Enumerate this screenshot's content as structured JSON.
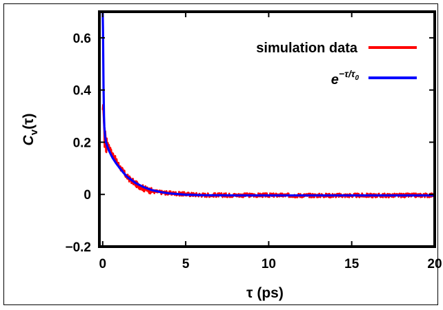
{
  "chart_data": {
    "type": "line",
    "xlabel": "τ (ps)",
    "ylabel": "C_v(τ)",
    "xlim": [
      -0.2,
      20
    ],
    "ylim": [
      -0.2,
      0.7
    ],
    "xticks": [
      0,
      5,
      10,
      15,
      20
    ],
    "xtick_labels": [
      "0",
      "5",
      "10",
      "15",
      "20"
    ],
    "yticks": [
      -0.2,
      0,
      0.2,
      0.4,
      0.6
    ],
    "ytick_labels": [
      "−0.2",
      "0",
      "0.2",
      "0.4",
      "0.6"
    ],
    "grid": false,
    "legend_position": "top-right",
    "series": [
      {
        "name": "simulation data",
        "color": "#ff0000",
        "style": "noisy line",
        "x": [
          0.0,
          0.05,
          0.1,
          0.15,
          0.2,
          0.3,
          0.4,
          0.5,
          0.6,
          0.8,
          1.0,
          1.25,
          1.5,
          2.0,
          2.5,
          3.0,
          3.5,
          4.0,
          5.0,
          6.0,
          8.0,
          10.0,
          12.0,
          15.0,
          18.0,
          20.0
        ],
        "y": [
          0.3,
          0.34,
          0.19,
          0.25,
          0.18,
          0.2,
          0.18,
          0.165,
          0.155,
          0.13,
          0.11,
          0.085,
          0.065,
          0.04,
          0.022,
          0.012,
          0.008,
          0.005,
          0.001,
          -0.002,
          -0.003,
          -0.003,
          -0.004,
          -0.004,
          -0.004,
          -0.003
        ]
      },
      {
        "name": "e^{−τ/τ0}",
        "color": "#0000ff",
        "style": "smooth line",
        "x": [
          0.0,
          0.02,
          0.05,
          0.08,
          0.1,
          0.15,
          0.2,
          0.3,
          0.4,
          0.5,
          0.6,
          0.8,
          1.0,
          1.25,
          1.5,
          2.0,
          2.5,
          3.0,
          3.5,
          4.0,
          5.0,
          6.0,
          8.0,
          10.0,
          12.0,
          15.0,
          18.0,
          20.0
        ],
        "y": [
          0.7,
          0.62,
          0.42,
          0.3,
          0.26,
          0.22,
          0.2,
          0.18,
          0.165,
          0.152,
          0.14,
          0.12,
          0.103,
          0.083,
          0.066,
          0.043,
          0.027,
          0.016,
          0.009,
          0.004,
          -0.001,
          -0.003,
          -0.004,
          -0.004,
          -0.004,
          -0.004,
          -0.004,
          -0.004
        ]
      }
    ],
    "legend": {
      "series0_label": "simulation data",
      "series1_base": "e",
      "series1_sup_main": "−τ/τ",
      "series1_sup_sub": "0"
    },
    "axis_text": {
      "ylabel_main": "C",
      "ylabel_sub": "v",
      "ylabel_rest": "(τ)"
    }
  }
}
